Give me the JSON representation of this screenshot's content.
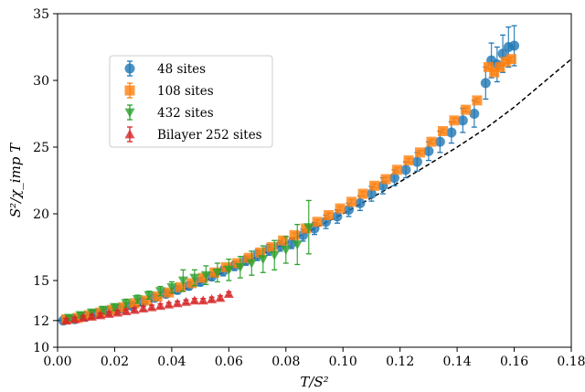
{
  "chart_data": {
    "type": "scatter",
    "xlabel": "T/S²",
    "ylabel": "S²/χ_imp T",
    "xlim": [
      0,
      0.18
    ],
    "ylim": [
      10,
      35
    ],
    "xticks": [
      "0.00",
      "0.02",
      "0.04",
      "0.06",
      "0.08",
      "0.10",
      "0.12",
      "0.14",
      "0.16",
      "0.18"
    ],
    "yticks": [
      "10",
      "12",
      "15",
      "20",
      "25",
      "30",
      "35"
    ],
    "grid": false,
    "legend_position": "upper-left",
    "colors": {
      "s48": "#1f77b4",
      "s108": "#ff7f0e",
      "s432": "#2ca02c",
      "bilayer": "#d62728",
      "fit": "#000000"
    },
    "series": [
      {
        "name": "48 sites",
        "marker": "circle",
        "color_key": "s48",
        "x": [
          0.002,
          0.006,
          0.01,
          0.014,
          0.018,
          0.022,
          0.026,
          0.03,
          0.034,
          0.038,
          0.042,
          0.046,
          0.05,
          0.054,
          0.058,
          0.062,
          0.066,
          0.07,
          0.074,
          0.078,
          0.082,
          0.086,
          0.09,
          0.094,
          0.098,
          0.102,
          0.106,
          0.11,
          0.114,
          0.118,
          0.122,
          0.126,
          0.13,
          0.134,
          0.138,
          0.142,
          0.146,
          0.15,
          0.152,
          0.154,
          0.156,
          0.158,
          0.16
        ],
        "y": [
          12.0,
          12.1,
          12.3,
          12.5,
          12.7,
          12.9,
          13.1,
          13.4,
          13.7,
          14.0,
          14.3,
          14.6,
          14.9,
          15.3,
          15.7,
          16.1,
          16.5,
          16.9,
          17.3,
          17.6,
          17.8,
          18.4,
          18.9,
          19.4,
          19.8,
          20.3,
          20.8,
          21.5,
          22.1,
          22.7,
          23.3,
          23.9,
          24.7,
          25.4,
          26.1,
          27.0,
          27.5,
          29.8,
          31.5,
          31.2,
          32.0,
          32.5,
          32.6
        ],
        "err": [
          0.15,
          0.15,
          0.15,
          0.2,
          0.2,
          0.2,
          0.2,
          0.2,
          0.25,
          0.25,
          0.3,
          0.3,
          0.3,
          0.3,
          0.35,
          0.35,
          0.35,
          0.4,
          0.4,
          0.4,
          0.4,
          0.45,
          0.45,
          0.5,
          0.5,
          0.5,
          0.55,
          0.55,
          0.6,
          0.6,
          0.6,
          0.7,
          0.7,
          0.8,
          0.8,
          0.9,
          1.0,
          1.2,
          1.3,
          1.3,
          1.4,
          1.5,
          1.5
        ]
      },
      {
        "name": "108 sites",
        "marker": "square",
        "color_key": "s108",
        "x": [
          0.003,
          0.007,
          0.011,
          0.015,
          0.019,
          0.023,
          0.027,
          0.031,
          0.035,
          0.039,
          0.043,
          0.047,
          0.051,
          0.055,
          0.059,
          0.063,
          0.067,
          0.071,
          0.075,
          0.079,
          0.083,
          0.087,
          0.091,
          0.095,
          0.099,
          0.103,
          0.107,
          0.111,
          0.115,
          0.119,
          0.123,
          0.127,
          0.131,
          0.135,
          0.139,
          0.143,
          0.147,
          0.151,
          0.153,
          0.155,
          0.157,
          0.159
        ],
        "y": [
          12.1,
          12.2,
          12.4,
          12.6,
          12.8,
          13.0,
          13.3,
          13.5,
          13.8,
          14.1,
          14.5,
          14.8,
          15.2,
          15.6,
          16.0,
          16.3,
          16.7,
          17.1,
          17.5,
          18.0,
          18.4,
          18.9,
          19.4,
          19.9,
          20.4,
          20.9,
          21.5,
          22.1,
          22.6,
          23.3,
          24.0,
          24.6,
          25.4,
          26.2,
          27.0,
          27.8,
          28.5,
          31.0,
          30.6,
          31.0,
          31.4,
          31.6
        ]
      },
      {
        "name": "432 sites",
        "marker": "triangle-down",
        "color_key": "s432",
        "x": [
          0.004,
          0.008,
          0.012,
          0.016,
          0.02,
          0.024,
          0.028,
          0.032,
          0.036,
          0.04,
          0.044,
          0.048,
          0.052,
          0.056,
          0.06,
          0.064,
          0.068,
          0.072,
          0.076,
          0.08,
          0.084,
          0.088
        ],
        "y": [
          12.2,
          12.4,
          12.6,
          12.8,
          13.0,
          13.3,
          13.6,
          13.9,
          14.2,
          14.5,
          15.0,
          15.2,
          15.4,
          15.6,
          15.8,
          16.0,
          16.3,
          16.6,
          16.9,
          17.3,
          17.7,
          19.0
        ],
        "err": [
          0.2,
          0.2,
          0.2,
          0.25,
          0.25,
          0.3,
          0.3,
          0.3,
          0.35,
          0.4,
          0.8,
          0.6,
          0.7,
          0.7,
          0.8,
          0.8,
          0.9,
          1.0,
          1.1,
          1.0,
          1.5,
          2.0
        ]
      },
      {
        "name": "Bilayer 252 sites",
        "marker": "triangle-up",
        "color_key": "bilayer",
        "x": [
          0.003,
          0.006,
          0.009,
          0.012,
          0.015,
          0.018,
          0.021,
          0.024,
          0.027,
          0.03,
          0.033,
          0.036,
          0.039,
          0.042,
          0.045,
          0.048,
          0.051,
          0.054,
          0.057,
          0.06
        ],
        "y": [
          12.0,
          12.1,
          12.2,
          12.3,
          12.4,
          12.5,
          12.6,
          12.7,
          12.8,
          12.9,
          13.0,
          13.1,
          13.2,
          13.3,
          13.4,
          13.5,
          13.5,
          13.6,
          13.7,
          14.0
        ]
      }
    ],
    "fit_curve": {
      "style": "dashed",
      "color_key": "fit",
      "x": [
        0.0,
        0.01,
        0.02,
        0.03,
        0.04,
        0.05,
        0.06,
        0.07,
        0.08,
        0.09,
        0.1,
        0.11,
        0.12,
        0.13,
        0.14,
        0.15,
        0.16,
        0.17,
        0.18
      ],
      "y": [
        12.0,
        12.2,
        12.6,
        13.2,
        14.0,
        14.8,
        15.8,
        16.8,
        17.8,
        18.9,
        20.0,
        21.2,
        22.4,
        23.7,
        25.0,
        26.4,
        28.0,
        29.8,
        31.6
      ]
    }
  }
}
